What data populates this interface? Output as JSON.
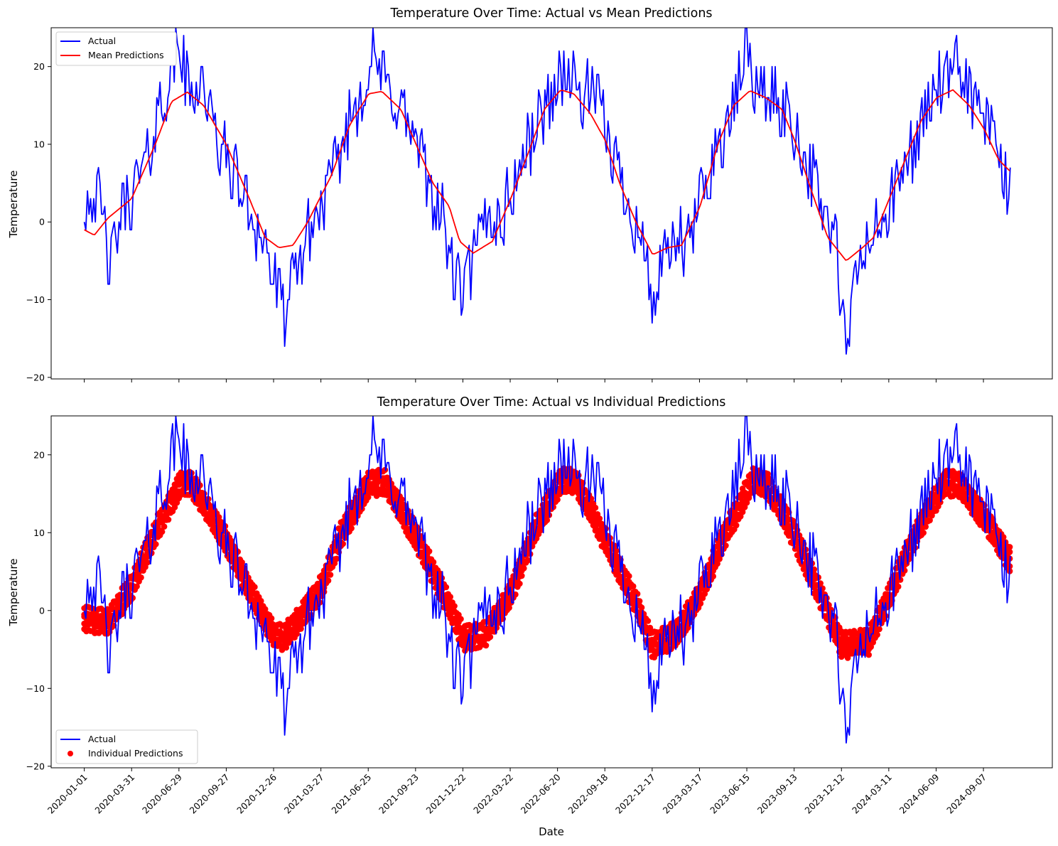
{
  "colors": {
    "actual": "#0000ff",
    "prediction": "#ff0000",
    "axes": "#000000",
    "legend_border": "#cccccc",
    "background": "#ffffff"
  },
  "shared_x": {
    "label": "Date",
    "tick_labels": [
      "2020-01-01",
      "2020-03-31",
      "2020-06-29",
      "2020-09-27",
      "2020-12-26",
      "2021-03-27",
      "2021-06-25",
      "2021-09-23",
      "2021-12-22",
      "2022-03-22",
      "2022-06-20",
      "2022-09-18",
      "2022-12-17",
      "2023-03-17",
      "2023-06-15",
      "2023-09-13",
      "2023-12-12",
      "2024-03-11",
      "2024-06-09",
      "2024-09-07"
    ],
    "tick_step_days": 90,
    "range": [
      "2019-10-30",
      "2025-01-15"
    ],
    "data_end": "2024-10-27",
    "tick_rotation": "45deg"
  },
  "chart_data": [
    {
      "type": "line",
      "title": "Temperature Over Time: Actual vs Mean Predictions",
      "xlabel": "",
      "ylabel": "Temperature",
      "ylim": [
        -20.2,
        25
      ],
      "yticks": [
        -20,
        -10,
        0,
        10,
        20
      ],
      "grid": false,
      "legend_position": "top-left",
      "series": [
        {
          "name": "Actual",
          "color": "#0000ff",
          "mark": "line",
          "anchors": [
            [
              "2020-01-01",
              2
            ],
            [
              "2020-01-15",
              4
            ],
            [
              "2020-02-01",
              2
            ],
            [
              "2020-02-20",
              -6
            ],
            [
              "2020-03-10",
              1
            ],
            [
              "2020-04-10",
              5
            ],
            [
              "2020-05-01",
              8
            ],
            [
              "2020-05-20",
              14
            ],
            [
              "2020-06-15",
              19
            ],
            [
              "2020-06-29",
              23
            ],
            [
              "2020-07-20",
              16
            ],
            [
              "2020-08-10",
              19
            ],
            [
              "2020-09-01",
              12
            ],
            [
              "2020-09-27",
              8
            ],
            [
              "2020-10-20",
              5
            ],
            [
              "2020-11-15",
              1
            ],
            [
              "2020-12-10",
              -3
            ],
            [
              "2021-01-05",
              -10
            ],
            [
              "2021-01-15",
              -12
            ],
            [
              "2021-02-01",
              -8
            ],
            [
              "2021-02-20",
              -3
            ],
            [
              "2021-03-27",
              2
            ],
            [
              "2021-04-20",
              6
            ],
            [
              "2021-05-15",
              12
            ],
            [
              "2021-06-10",
              17
            ],
            [
              "2021-07-05",
              21
            ],
            [
              "2021-08-01",
              17
            ],
            [
              "2021-08-25",
              15
            ],
            [
              "2021-09-23",
              10
            ],
            [
              "2021-10-15",
              5
            ],
            [
              "2021-11-10",
              1
            ],
            [
              "2021-12-05",
              -7
            ],
            [
              "2021-12-22",
              -9
            ],
            [
              "2022-01-10",
              -5
            ],
            [
              "2022-02-05",
              1
            ],
            [
              "2022-03-05",
              0
            ],
            [
              "2022-03-22",
              4
            ],
            [
              "2022-04-20",
              9
            ],
            [
              "2022-05-20",
              14
            ],
            [
              "2022-06-20",
              18
            ],
            [
              "2022-07-05",
              20
            ],
            [
              "2022-08-01",
              16
            ],
            [
              "2022-08-25",
              17
            ],
            [
              "2022-09-18",
              12
            ],
            [
              "2022-10-10",
              7
            ],
            [
              "2022-11-01",
              3
            ],
            [
              "2022-11-25",
              -2
            ],
            [
              "2022-12-17",
              -10
            ],
            [
              "2023-01-05",
              -6
            ],
            [
              "2023-02-01",
              -2
            ],
            [
              "2023-02-20",
              -4
            ],
            [
              "2023-03-17",
              3
            ],
            [
              "2023-04-15",
              9
            ],
            [
              "2023-05-15",
              13
            ],
            [
              "2023-06-15",
              23
            ],
            [
              "2023-07-01",
              17
            ],
            [
              "2023-08-01",
              16
            ],
            [
              "2023-09-01",
              14
            ],
            [
              "2023-09-13",
              12
            ],
            [
              "2023-10-10",
              7
            ],
            [
              "2023-11-05",
              2
            ],
            [
              "2023-12-01",
              -3
            ],
            [
              "2023-12-20",
              -18
            ],
            [
              "2024-01-05",
              -8
            ],
            [
              "2024-01-25",
              -3
            ],
            [
              "2024-02-20",
              -1
            ],
            [
              "2024-03-11",
              2
            ],
            [
              "2024-04-10",
              7
            ],
            [
              "2024-05-10",
              12
            ],
            [
              "2024-06-09",
              18
            ],
            [
              "2024-07-01",
              17
            ],
            [
              "2024-07-20",
              20
            ],
            [
              "2024-08-10",
              17
            ],
            [
              "2024-09-07",
              13
            ],
            [
              "2024-10-01",
              10
            ],
            [
              "2024-10-20",
              4
            ],
            [
              "2024-10-27",
              6
            ]
          ]
        },
        {
          "name": "Mean Predictions",
          "color": "#ff0000",
          "mark": "line",
          "anchors": [
            [
              "2020-01-01",
              -1
            ],
            [
              "2020-01-20",
              -1.7
            ],
            [
              "2020-02-15",
              0.5
            ],
            [
              "2020-03-31",
              3
            ],
            [
              "2020-05-15",
              10
            ],
            [
              "2020-06-15",
              15.5
            ],
            [
              "2020-07-15",
              16.7
            ],
            [
              "2020-08-15",
              15
            ],
            [
              "2020-09-27",
              10
            ],
            [
              "2020-11-10",
              3
            ],
            [
              "2020-12-10",
              -2
            ],
            [
              "2021-01-05",
              -3.3
            ],
            [
              "2021-02-01",
              -3
            ],
            [
              "2021-03-01",
              0
            ],
            [
              "2021-04-15",
              6
            ],
            [
              "2021-05-20",
              12.5
            ],
            [
              "2021-06-25",
              16.5
            ],
            [
              "2021-07-20",
              16.8
            ],
            [
              "2021-08-25",
              14.5
            ],
            [
              "2021-09-23",
              10
            ],
            [
              "2021-10-25",
              5
            ],
            [
              "2021-11-25",
              2
            ],
            [
              "2021-12-15",
              -2.5
            ],
            [
              "2022-01-10",
              -4
            ],
            [
              "2022-02-15",
              -2.5
            ],
            [
              "2022-03-22",
              3
            ],
            [
              "2022-04-25",
              9
            ],
            [
              "2022-05-25",
              14.5
            ],
            [
              "2022-06-25",
              17
            ],
            [
              "2022-07-20",
              16.5
            ],
            [
              "2022-08-20",
              14
            ],
            [
              "2022-09-18",
              10.5
            ],
            [
              "2022-10-15",
              5
            ],
            [
              "2022-11-15",
              0
            ],
            [
              "2022-12-17",
              -4.2
            ],
            [
              "2023-01-15",
              -3.3
            ],
            [
              "2023-02-10",
              -3
            ],
            [
              "2023-03-17",
              2
            ],
            [
              "2023-04-20",
              10
            ],
            [
              "2023-05-20",
              15
            ],
            [
              "2023-06-20",
              16.9
            ],
            [
              "2023-07-20",
              16
            ],
            [
              "2023-08-20",
              14.5
            ],
            [
              "2023-09-13",
              10.5
            ],
            [
              "2023-10-15",
              4
            ],
            [
              "2023-11-15",
              -2
            ],
            [
              "2023-12-20",
              -5
            ],
            [
              "2024-01-20",
              -3.3
            ],
            [
              "2024-02-10",
              -2
            ],
            [
              "2024-03-11",
              3
            ],
            [
              "2024-04-10",
              8
            ],
            [
              "2024-05-10",
              13
            ],
            [
              "2024-06-09",
              16
            ],
            [
              "2024-07-10",
              17
            ],
            [
              "2024-08-10",
              15
            ],
            [
              "2024-09-07",
              12
            ],
            [
              "2024-10-05",
              8
            ],
            [
              "2024-10-27",
              6.5
            ]
          ]
        }
      ]
    },
    {
      "type": "line",
      "title": "Temperature Over Time: Actual vs Individual Predictions",
      "xlabel": "Date",
      "ylabel": "Temperature",
      "ylim": [
        -20.2,
        25
      ],
      "yticks": [
        -20,
        -10,
        0,
        10,
        20
      ],
      "grid": false,
      "legend_position": "bottom-left",
      "series": [
        {
          "name": "Actual",
          "color": "#0000ff",
          "mark": "line",
          "anchors": "same as chart 1 Actual"
        },
        {
          "name": "Individual Predictions",
          "color": "#ff0000",
          "mark": "scatter",
          "band_center": [
            [
              "2020-01-01",
              -1
            ],
            [
              "2020-02-15",
              -1.5
            ],
            [
              "2020-03-31",
              3
            ],
            [
              "2020-05-15",
              10
            ],
            [
              "2020-06-29",
              16
            ],
            [
              "2020-07-20",
              16.5
            ],
            [
              "2020-09-27",
              9
            ],
            [
              "2020-11-15",
              2
            ],
            [
              "2020-12-26",
              -3
            ],
            [
              "2021-01-15",
              -3.5
            ],
            [
              "2021-02-15",
              -1
            ],
            [
              "2021-03-27",
              3
            ],
            [
              "2021-05-05",
              10
            ],
            [
              "2021-06-25",
              16.3
            ],
            [
              "2021-07-25",
              16.5
            ],
            [
              "2021-09-23",
              9.5
            ],
            [
              "2021-11-15",
              2
            ],
            [
              "2021-12-22",
              -3.5
            ],
            [
              "2022-02-01",
              -3
            ],
            [
              "2022-03-22",
              2
            ],
            [
              "2022-05-05",
              10
            ],
            [
              "2022-06-25",
              16.7
            ],
            [
              "2022-07-25",
              16.5
            ],
            [
              "2022-09-18",
              9
            ],
            [
              "2022-11-15",
              1
            ],
            [
              "2022-12-17",
              -4.5
            ],
            [
              "2023-02-01",
              -3
            ],
            [
              "2023-03-17",
              2
            ],
            [
              "2023-05-05",
              10
            ],
            [
              "2023-06-25",
              16.7
            ],
            [
              "2023-07-25",
              16
            ],
            [
              "2023-09-13",
              9.5
            ],
            [
              "2023-11-01",
              2
            ],
            [
              "2023-12-12",
              -4.5
            ],
            [
              "2024-02-01",
              -4
            ],
            [
              "2024-03-11",
              2
            ],
            [
              "2024-05-01",
              10
            ],
            [
              "2024-06-25",
              16.5
            ],
            [
              "2024-07-25",
              16
            ],
            [
              "2024-09-07",
              12
            ],
            [
              "2024-10-27",
              6.5
            ]
          ],
          "band_half_width": 1.4
        }
      ]
    }
  ]
}
